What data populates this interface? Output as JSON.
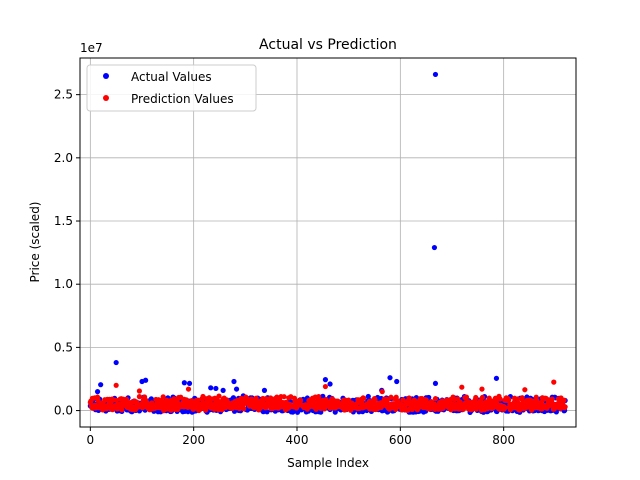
{
  "chart_data": {
    "type": "scatter",
    "title": "Actual vs Prediction",
    "xlabel": "Sample Index",
    "ylabel": "Price (scaled)",
    "y_offset_label": "1e7",
    "xlim": [
      -20,
      940
    ],
    "ylim": [
      -1300000,
      27900000
    ],
    "x_ticks": [
      0,
      200,
      400,
      600,
      800
    ],
    "y_ticks": [
      0,
      5000000,
      10000000,
      15000000,
      20000000,
      25000000
    ],
    "y_tick_labels": [
      "0.0",
      "0.5",
      "1.0",
      "1.5",
      "2.0",
      "2.5"
    ],
    "grid": true,
    "legend_position": "upper-left",
    "n_points": 920,
    "series": [
      {
        "name": "Actual Values",
        "color": "#0000ff",
        "base": 300000,
        "spread": 900000,
        "low": -150000,
        "outliers": [
          {
            "x": 668,
            "y": 26600000
          },
          {
            "x": 666,
            "y": 12900000
          },
          {
            "x": 50,
            "y": 3800000
          },
          {
            "x": 580,
            "y": 2600000
          },
          {
            "x": 786,
            "y": 2550000
          },
          {
            "x": 455,
            "y": 2450000
          },
          {
            "x": 107,
            "y": 2400000
          },
          {
            "x": 100,
            "y": 2300000
          },
          {
            "x": 278,
            "y": 2300000
          },
          {
            "x": 593,
            "y": 2300000
          },
          {
            "x": 182,
            "y": 2200000
          },
          {
            "x": 192,
            "y": 2150000
          },
          {
            "x": 668,
            "y": 2150000
          },
          {
            "x": 464,
            "y": 2100000
          },
          {
            "x": 20,
            "y": 2050000
          },
          {
            "x": 233,
            "y": 1800000
          },
          {
            "x": 243,
            "y": 1750000
          },
          {
            "x": 283,
            "y": 1700000
          },
          {
            "x": 257,
            "y": 1600000
          },
          {
            "x": 337,
            "y": 1600000
          },
          {
            "x": 564,
            "y": 1600000
          },
          {
            "x": 14,
            "y": 1500000
          }
        ]
      },
      {
        "name": "Prediction Values",
        "color": "#ff0000",
        "base": 400000,
        "spread": 800000,
        "low": 0,
        "outliers": [
          {
            "x": 50,
            "y": 2000000
          },
          {
            "x": 897,
            "y": 2250000
          },
          {
            "x": 455,
            "y": 1900000
          },
          {
            "x": 719,
            "y": 1850000
          },
          {
            "x": 758,
            "y": 1700000
          },
          {
            "x": 841,
            "y": 1650000
          },
          {
            "x": 565,
            "y": 1500000
          },
          {
            "x": 190,
            "y": 1700000
          },
          {
            "x": 95,
            "y": 1550000
          }
        ]
      }
    ]
  }
}
